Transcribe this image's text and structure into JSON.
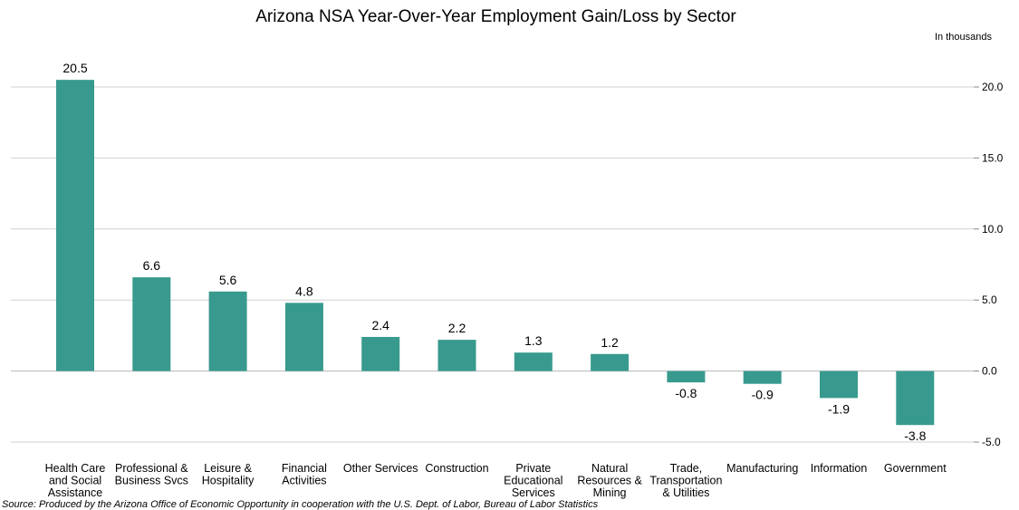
{
  "chart_data": {
    "type": "bar",
    "title": "Arizona NSA Year-Over-Year Employment Gain/Loss by Sector",
    "units_label": "In thousands",
    "source": "Source: Produced by the Arizona Office of Economic Opportunity in cooperation with the U.S. Dept. of Labor, Bureau of Labor Statistics",
    "categories": [
      [
        "Health Care",
        "and Social",
        "Assistance"
      ],
      [
        "Professional &",
        "Business Svcs"
      ],
      [
        "Leisure &",
        "Hospitality"
      ],
      [
        "Financial",
        "Activities"
      ],
      [
        "Other Services"
      ],
      [
        "Construction"
      ],
      [
        "Private",
        "Educational",
        "Services"
      ],
      [
        "Natural",
        "Resources &",
        "Mining"
      ],
      [
        "Trade,",
        "Transportation",
        "& Utilities"
      ],
      [
        "Manufacturing"
      ],
      [
        "Information"
      ],
      [
        "Government"
      ]
    ],
    "values": [
      20.5,
      6.6,
      5.6,
      4.8,
      2.4,
      2.2,
      1.3,
      1.2,
      -0.8,
      -0.9,
      -1.9,
      -3.8
    ],
    "value_labels": [
      "20.5",
      "6.6",
      "5.6",
      "4.8",
      "2.4",
      "2.2",
      "1.3",
      "1.2",
      "-0.8",
      "-0.9",
      "-1.9",
      "-3.8"
    ],
    "yticks": [
      -5,
      0,
      5,
      10,
      15,
      20
    ],
    "ytick_labels": [
      "-5.0",
      "0.0",
      "5.0",
      "10.0",
      "15.0",
      "20.0"
    ],
    "ylim": [
      -5,
      20
    ],
    "grid": true,
    "bar_color": "#389A8E",
    "grid_color": "#d0d0d0"
  }
}
